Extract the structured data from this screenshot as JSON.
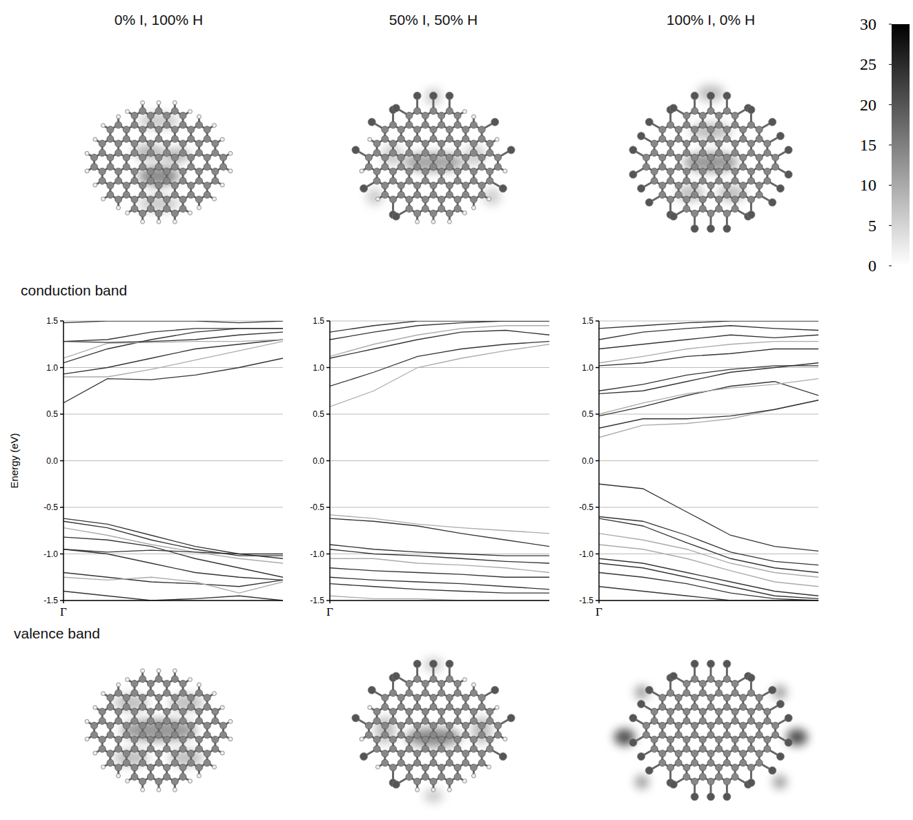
{
  "chart_data": [
    {
      "type": "line",
      "title": "0% I, 100% H",
      "y_label": "Energy (eV)",
      "xlim": [
        0,
        1
      ],
      "xticks": [
        {
          "value": 0,
          "label": "Γ"
        }
      ],
      "ylim": [
        -1.5,
        1.5
      ],
      "yticks": [
        -1.5,
        {
          "value": -1,
          "label": "-1.0"
        },
        -0.5,
        {
          "value": 0,
          "label": "0.0"
        },
        0.5,
        {
          "value": 1,
          "label": "1.0"
        },
        1.5
      ],
      "grid": true,
      "x": [
        0,
        0.2,
        0.4,
        0.6,
        0.8,
        1.0
      ],
      "series": [
        {
          "color": "#333333",
          "values": [
            0.62,
            0.88,
            0.87,
            0.92,
            1.0,
            1.1
          ]
        },
        {
          "color": "#aaaaaa",
          "values": [
            0.9,
            0.9,
            0.98,
            1.08,
            1.18,
            1.28
          ]
        },
        {
          "color": "#333333",
          "values": [
            0.93,
            1.0,
            1.1,
            1.2,
            1.25,
            1.3
          ]
        },
        {
          "color": "#333333",
          "values": [
            1.05,
            1.2,
            1.3,
            1.38,
            1.42,
            1.42
          ]
        },
        {
          "color": "#aaaaaa",
          "values": [
            1.1,
            1.26,
            1.27,
            1.28,
            1.28,
            1.3
          ]
        },
        {
          "color": "#333333",
          "values": [
            1.28,
            1.27,
            1.28,
            1.3,
            1.35,
            1.38
          ]
        },
        {
          "color": "#333333",
          "values": [
            1.28,
            1.3,
            1.38,
            1.42,
            1.42,
            1.42
          ]
        },
        {
          "color": "#333333",
          "values": [
            1.48,
            1.5,
            1.5,
            1.5,
            1.48,
            1.5
          ]
        },
        {
          "color": "#333333",
          "values": [
            -0.62,
            -0.68,
            -0.8,
            -0.92,
            -1.0,
            -1.05
          ]
        },
        {
          "color": "#333333",
          "values": [
            -0.65,
            -0.72,
            -0.85,
            -0.95,
            -1.02,
            -1.02
          ]
        },
        {
          "color": "#aaaaaa",
          "values": [
            -0.72,
            -0.8,
            -0.9,
            -0.98,
            -1.05,
            -1.1
          ]
        },
        {
          "color": "#333333",
          "values": [
            -0.82,
            -0.85,
            -0.92,
            -1.05,
            -1.15,
            -1.25
          ]
        },
        {
          "color": "#333333",
          "values": [
            -0.95,
            -0.98,
            -0.96,
            -0.98,
            -1.0,
            -1.0
          ]
        },
        {
          "color": "#333333",
          "values": [
            -0.95,
            -1.0,
            -1.1,
            -1.2,
            -1.25,
            -1.28
          ]
        },
        {
          "color": "#333333",
          "values": [
            -1.2,
            -1.25,
            -1.3,
            -1.32,
            -1.35,
            -1.28
          ]
        },
        {
          "color": "#aaaaaa",
          "values": [
            -1.25,
            -1.28,
            -1.25,
            -1.3,
            -1.42,
            -1.3
          ]
        },
        {
          "color": "#333333",
          "values": [
            -1.4,
            -1.45,
            -1.5,
            -1.48,
            -1.45,
            -1.5
          ]
        }
      ]
    },
    {
      "type": "line",
      "title": "50% I, 50% H",
      "xlim": [
        0,
        1
      ],
      "xticks": [
        {
          "value": 0,
          "label": "Γ"
        }
      ],
      "ylim": [
        -1.5,
        1.5
      ],
      "yticks": [
        -1.5,
        {
          "value": -1,
          "label": "-1.0"
        },
        -0.5,
        {
          "value": 0,
          "label": "0.0"
        },
        0.5,
        {
          "value": 1,
          "label": "1.0"
        },
        1.5
      ],
      "grid": true,
      "x": [
        0,
        0.2,
        0.4,
        0.6,
        0.8,
        1.0
      ],
      "series": [
        {
          "color": "#aaaaaa",
          "values": [
            0.58,
            0.75,
            1.0,
            1.1,
            1.18,
            1.25
          ]
        },
        {
          "color": "#333333",
          "values": [
            0.8,
            0.95,
            1.12,
            1.2,
            1.25,
            1.28
          ]
        },
        {
          "color": "#333333",
          "values": [
            1.1,
            1.2,
            1.3,
            1.38,
            1.4,
            1.35
          ]
        },
        {
          "color": "#aaaaaa",
          "values": [
            1.12,
            1.25,
            1.35,
            1.42,
            1.45,
            1.45
          ]
        },
        {
          "color": "#333333",
          "values": [
            1.3,
            1.38,
            1.45,
            1.48,
            1.5,
            1.5
          ]
        },
        {
          "color": "#333333",
          "values": [
            1.38,
            1.45,
            1.5,
            1.5,
            1.5,
            1.5
          ]
        },
        {
          "color": "#aaaaaa",
          "values": [
            -0.58,
            -0.62,
            -0.68,
            -0.72,
            -0.75,
            -0.78
          ]
        },
        {
          "color": "#333333",
          "values": [
            -0.62,
            -0.65,
            -0.7,
            -0.78,
            -0.85,
            -0.92
          ]
        },
        {
          "color": "#333333",
          "values": [
            -0.9,
            -0.95,
            -0.98,
            -1.0,
            -1.02,
            -1.02
          ]
        },
        {
          "color": "#333333",
          "values": [
            -0.95,
            -1.0,
            -1.02,
            -1.05,
            -1.08,
            -1.1
          ]
        },
        {
          "color": "#aaaaaa",
          "values": [
            -1.05,
            -1.05,
            -1.1,
            -1.12,
            -1.15,
            -1.2
          ]
        },
        {
          "color": "#333333",
          "values": [
            -1.15,
            -1.18,
            -1.2,
            -1.22,
            -1.25,
            -1.25
          ]
        },
        {
          "color": "#333333",
          "values": [
            -1.25,
            -1.28,
            -1.3,
            -1.32,
            -1.35,
            -1.38
          ]
        },
        {
          "color": "#333333",
          "values": [
            -1.32,
            -1.35,
            -1.38,
            -1.4,
            -1.42,
            -1.42
          ]
        },
        {
          "color": "#aaaaaa",
          "values": [
            -1.45,
            -1.48,
            -1.48,
            -1.5,
            -1.5,
            -1.5
          ]
        }
      ]
    },
    {
      "type": "line",
      "title": "100% I, 0% H",
      "xlim": [
        0,
        1
      ],
      "xticks": [
        {
          "value": 0,
          "label": "Γ"
        }
      ],
      "ylim": [
        -1.5,
        1.5
      ],
      "yticks": [
        -1.5,
        {
          "value": -1,
          "label": "-1.0"
        },
        -0.5,
        {
          "value": 0,
          "label": "0.0"
        },
        0.5,
        {
          "value": 1,
          "label": "1.0"
        },
        1.5
      ],
      "grid": true,
      "x": [
        0,
        0.2,
        0.4,
        0.6,
        0.8,
        1.0
      ],
      "series": [
        {
          "color": "#aaaaaa",
          "values": [
            0.25,
            0.38,
            0.4,
            0.45,
            0.55,
            0.65
          ]
        },
        {
          "color": "#333333",
          "values": [
            0.35,
            0.45,
            0.45,
            0.48,
            0.55,
            0.65
          ]
        },
        {
          "color": "#333333",
          "values": [
            0.48,
            0.58,
            0.7,
            0.8,
            0.85,
            0.7
          ]
        },
        {
          "color": "#aaaaaa",
          "values": [
            0.5,
            0.62,
            0.72,
            0.78,
            0.82,
            0.88
          ]
        },
        {
          "color": "#333333",
          "values": [
            0.72,
            0.75,
            0.85,
            0.95,
            1.0,
            1.05
          ]
        },
        {
          "color": "#333333",
          "values": [
            0.75,
            0.82,
            0.92,
            0.98,
            1.02,
            1.02
          ]
        },
        {
          "color": "#333333",
          "values": [
            1.02,
            1.05,
            1.12,
            1.15,
            1.2,
            1.2
          ]
        },
        {
          "color": "#aaaaaa",
          "values": [
            1.05,
            1.12,
            1.2,
            1.25,
            1.28,
            1.28
          ]
        },
        {
          "color": "#333333",
          "values": [
            1.2,
            1.25,
            1.3,
            1.35,
            1.32,
            1.35
          ]
        },
        {
          "color": "#333333",
          "values": [
            1.3,
            1.38,
            1.42,
            1.45,
            1.42,
            1.4
          ]
        },
        {
          "color": "#333333",
          "values": [
            1.42,
            1.45,
            1.48,
            1.5,
            1.5,
            1.5
          ]
        },
        {
          "color": "#333333",
          "values": [
            -0.25,
            -0.3,
            -0.55,
            -0.8,
            -0.92,
            -0.97
          ]
        },
        {
          "color": "#333333",
          "values": [
            -0.6,
            -0.65,
            -0.8,
            -0.98,
            -1.08,
            -1.12
          ]
        },
        {
          "color": "#333333",
          "values": [
            -0.62,
            -0.7,
            -0.88,
            -1.05,
            -1.15,
            -1.2
          ]
        },
        {
          "color": "#aaaaaa",
          "values": [
            -0.78,
            -0.85,
            -0.95,
            -1.1,
            -1.2,
            -1.25
          ]
        },
        {
          "color": "#aaaaaa",
          "values": [
            -0.9,
            -0.95,
            -1.05,
            -1.18,
            -1.3,
            -1.35
          ]
        },
        {
          "color": "#333333",
          "values": [
            -1.05,
            -1.1,
            -1.2,
            -1.3,
            -1.4,
            -1.45
          ]
        },
        {
          "color": "#333333",
          "values": [
            -1.1,
            -1.15,
            -1.25,
            -1.35,
            -1.45,
            -1.48
          ]
        },
        {
          "color": "#333333",
          "values": [
            -1.2,
            -1.25,
            -1.32,
            -1.42,
            -1.48,
            -1.5
          ]
        },
        {
          "color": "#333333",
          "values": [
            -1.35,
            -1.4,
            -1.45,
            -1.5,
            -1.5,
            -1.5
          ]
        }
      ]
    }
  ],
  "labels": {
    "conduction_band": "conduction band",
    "valence_band": "valence band"
  },
  "colorbar": {
    "range": [
      0,
      30
    ],
    "ticks": [
      0,
      5,
      10,
      15,
      20,
      25,
      30
    ]
  }
}
